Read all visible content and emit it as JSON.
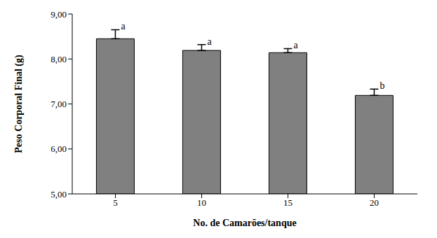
{
  "chart_data": {
    "type": "bar",
    "x_label": "No. de Camarões/tanque",
    "y_label": "Peso Corporal Final (g)",
    "categories": [
      "5",
      "10",
      "15",
      "20"
    ],
    "values": [
      8.45,
      8.19,
      8.14,
      7.19
    ],
    "errors": [
      0.2,
      0.13,
      0.09,
      0.14
    ],
    "annotations": [
      "a",
      "a",
      "a",
      "b"
    ],
    "color": "#808080",
    "ylim": [
      5,
      9
    ],
    "yticks": [
      {
        "value": 5,
        "label": "5,00"
      },
      {
        "value": 6,
        "label": "6,00"
      },
      {
        "value": 7,
        "label": "7,00"
      },
      {
        "value": 8,
        "label": "8,00"
      },
      {
        "value": 9,
        "label": "9,00"
      }
    ],
    "grid": false
  }
}
